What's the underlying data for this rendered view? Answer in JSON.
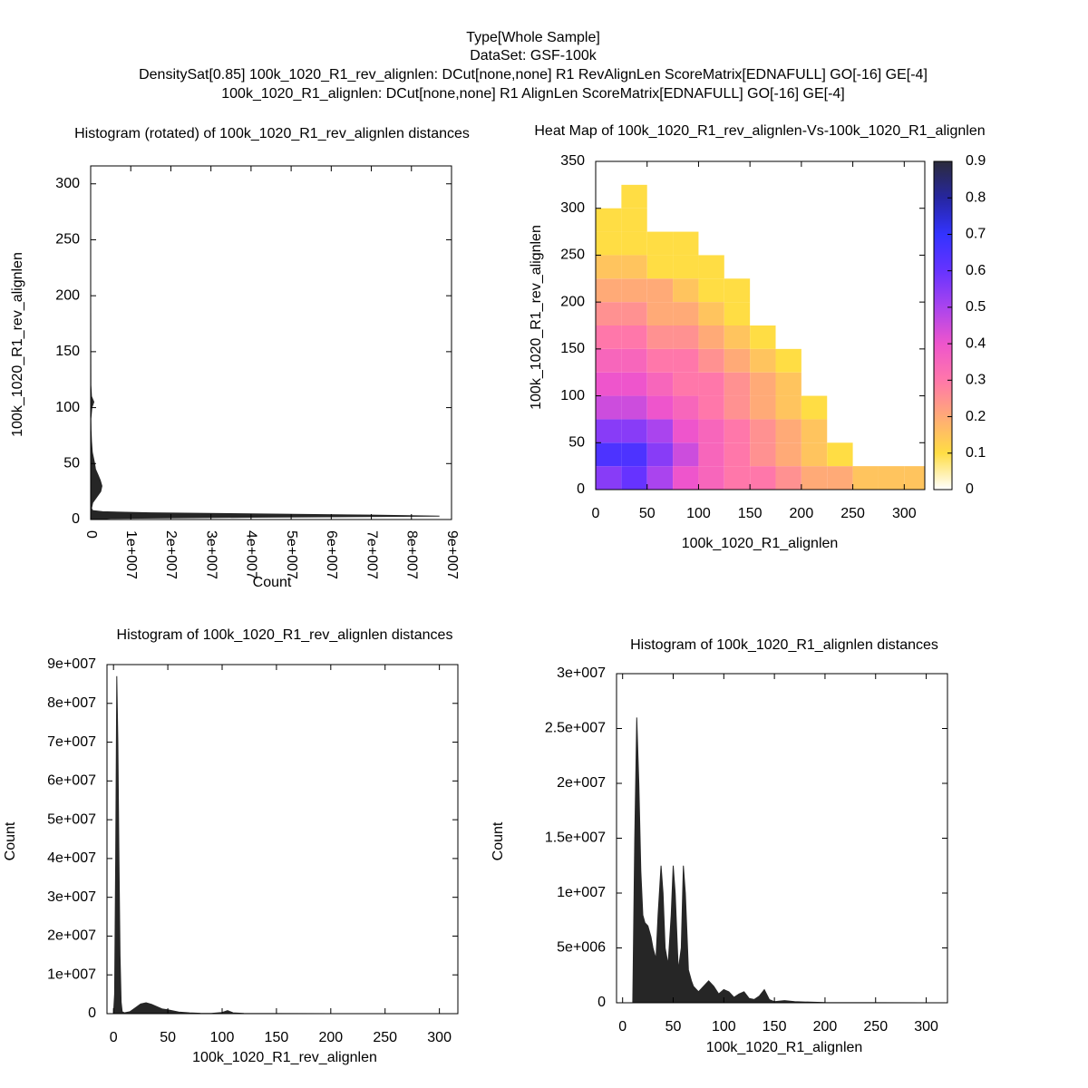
{
  "figure_title": [
    "Type[Whole Sample]",
    "DataSet: GSF-100k",
    "DensitySat[0.85] 100k_1020_R1_rev_alignlen: DCut[none,none] R1 RevAlignLen ScoreMatrix[EDNAFULL] GO[-16] GE[-4]",
    "100k_1020_R1_alignlen: DCut[none,none] R1 AlignLen ScoreMatrix[EDNAFULL] GO[-16] GE[-4]"
  ],
  "chart_data": [
    {
      "type": "area",
      "orientation": "horizontal",
      "title": "Histogram (rotated) of 100k_1020_R1_rev_alignlen distances",
      "xlabel": "Count",
      "ylabel": "100k_1020_R1_rev_alignlen",
      "color": "#262626",
      "x": [
        0,
        1,
        2,
        3,
        4,
        5,
        6,
        7,
        8,
        10,
        15,
        20,
        25,
        30,
        35,
        40,
        45,
        50,
        55,
        60,
        70,
        80,
        90,
        100,
        105,
        110,
        120,
        150,
        200,
        300
      ],
      "values": [
        0,
        5000000,
        40000000,
        87000000,
        70000000,
        40000000,
        15000000,
        3000000,
        500000,
        200000,
        500000,
        1500000,
        2500000,
        2800000,
        2400000,
        1800000,
        1200000,
        1000000,
        700000,
        400000,
        200000,
        100000,
        50000,
        300000,
        800000,
        200000,
        50000,
        20000,
        10000,
        0
      ],
      "xlim": [
        0,
        90000000
      ],
      "xticks": [
        0,
        {
          "value": 10000000,
          "label": "1e+007"
        },
        {
          "value": 20000000,
          "label": "2e+007"
        },
        {
          "value": 30000000,
          "label": "3e+007"
        },
        {
          "value": 40000000,
          "label": "4e+007"
        },
        {
          "value": 50000000,
          "label": "5e+007"
        },
        {
          "value": 60000000,
          "label": "6e+007"
        },
        {
          "value": 70000000,
          "label": "7e+007"
        },
        {
          "value": 80000000,
          "label": "8e+007"
        },
        {
          "value": 90000000,
          "label": "9e+007"
        }
      ],
      "ylim": [
        0,
        316
      ],
      "yticks": [
        0,
        50,
        100,
        150,
        200,
        250,
        300
      ]
    },
    {
      "type": "heatmap",
      "title": "Heat Map of 100k_1020_R1_rev_alignlen-Vs-100k_1020_R1_alignlen",
      "xlabel": "100k_1020_R1_alignlen",
      "ylabel": "100k_1020_R1_rev_alignlen",
      "x": [
        12.5,
        37.5,
        62.5,
        87.5,
        112.5,
        137.5,
        162.5,
        187.5,
        212.5,
        237.5,
        262.5,
        287.5,
        312.5
      ],
      "y": [
        12.5,
        37.5,
        62.5,
        87.5,
        112.5,
        137.5,
        162.5,
        187.5,
        212.5,
        237.5,
        262.5,
        287.5,
        312.5
      ],
      "z": [
        [
          0.55,
          0.6,
          0.5,
          0.4,
          0.35,
          0.3,
          0.3,
          0.25,
          0.2,
          0.2,
          0.15,
          0.15,
          0.15
        ],
        [
          0.65,
          0.65,
          0.55,
          0.45,
          0.35,
          0.3,
          0.25,
          0.2,
          0.15,
          0.1,
          null,
          null,
          null
        ],
        [
          0.55,
          0.55,
          0.5,
          0.4,
          0.35,
          0.3,
          0.25,
          0.2,
          0.15,
          null,
          null,
          null,
          null
        ],
        [
          0.45,
          0.45,
          0.4,
          0.35,
          0.3,
          0.25,
          0.2,
          0.15,
          0.1,
          null,
          null,
          null,
          null
        ],
        [
          0.4,
          0.4,
          0.35,
          0.3,
          0.3,
          0.25,
          0.2,
          0.15,
          null,
          null,
          null,
          null,
          null
        ],
        [
          0.35,
          0.35,
          0.3,
          0.3,
          0.25,
          0.2,
          0.15,
          0.1,
          null,
          null,
          null,
          null,
          null
        ],
        [
          0.3,
          0.3,
          0.25,
          0.25,
          0.2,
          0.15,
          0.1,
          null,
          null,
          null,
          null,
          null,
          null
        ],
        [
          0.25,
          0.25,
          0.2,
          0.2,
          0.15,
          0.1,
          null,
          null,
          null,
          null,
          null,
          null,
          null
        ],
        [
          0.2,
          0.2,
          0.2,
          0.15,
          0.1,
          0.1,
          null,
          null,
          null,
          null,
          null,
          null,
          null
        ],
        [
          0.15,
          0.15,
          0.1,
          0.1,
          0.1,
          null,
          null,
          null,
          null,
          null,
          null,
          null,
          null
        ],
        [
          0.1,
          0.1,
          0.1,
          0.1,
          null,
          null,
          null,
          null,
          null,
          null,
          null,
          null,
          null
        ],
        [
          0.1,
          0.1,
          null,
          null,
          null,
          null,
          null,
          null,
          null,
          null,
          null,
          null,
          null
        ],
        [
          null,
          0.1,
          null,
          null,
          null,
          null,
          null,
          null,
          null,
          null,
          null,
          null,
          null
        ]
      ],
      "xlim": [
        0,
        320
      ],
      "xticks": [
        0,
        50,
        100,
        150,
        200,
        250,
        300
      ],
      "ylim": [
        0,
        350
      ],
      "yticks": [
        0,
        50,
        100,
        150,
        200,
        250,
        300,
        350
      ],
      "cblim": [
        0,
        0.9
      ],
      "cbticks": [
        0,
        0.1,
        0.2,
        0.3,
        0.4,
        0.5,
        0.6,
        0.7,
        0.8,
        0.9
      ],
      "palette": [
        "#ffffff",
        "#ffdd44",
        "#ffaa77",
        "#ff77aa",
        "#ee55cc",
        "#aa44ee",
        "#6633ff",
        "#3333ff",
        "#2626a0",
        "#2b2b3b"
      ]
    },
    {
      "type": "area",
      "orientation": "vertical",
      "title": "Histogram of 100k_1020_R1_rev_alignlen distances",
      "xlabel": "100k_1020_R1_rev_alignlen",
      "ylabel": "Count",
      "color": "#262626",
      "x": [
        0,
        1,
        2,
        3,
        4,
        5,
        6,
        7,
        8,
        10,
        15,
        20,
        25,
        30,
        35,
        40,
        45,
        50,
        55,
        60,
        70,
        80,
        90,
        100,
        105,
        110,
        120,
        150,
        200,
        300
      ],
      "values": [
        0,
        5000000,
        40000000,
        87000000,
        70000000,
        40000000,
        15000000,
        3000000,
        500000,
        200000,
        500000,
        1500000,
        2500000,
        2800000,
        2400000,
        1800000,
        1200000,
        1000000,
        700000,
        400000,
        200000,
        100000,
        50000,
        300000,
        800000,
        200000,
        50000,
        20000,
        10000,
        0
      ],
      "xlim": [
        -6,
        317
      ],
      "xticks": [
        0,
        50,
        100,
        150,
        200,
        250,
        300
      ],
      "ylim": [
        0,
        90000000
      ],
      "yticks": [
        0,
        {
          "value": 10000000,
          "label": "1e+007"
        },
        {
          "value": 20000000,
          "label": "2e+007"
        },
        {
          "value": 30000000,
          "label": "3e+007"
        },
        {
          "value": 40000000,
          "label": "4e+007"
        },
        {
          "value": 50000000,
          "label": "5e+007"
        },
        {
          "value": 60000000,
          "label": "6e+007"
        },
        {
          "value": 70000000,
          "label": "7e+007"
        },
        {
          "value": 80000000,
          "label": "8e+007"
        },
        {
          "value": 90000000,
          "label": "9e+007"
        }
      ]
    },
    {
      "type": "area",
      "orientation": "vertical",
      "title": "Histogram of 100k_1020_R1_alignlen distances",
      "xlabel": "100k_1020_R1_alignlen",
      "ylabel": "Count",
      "color": "#262626",
      "x": [
        10,
        12,
        14,
        16,
        18,
        20,
        22,
        25,
        28,
        30,
        33,
        35,
        38,
        40,
        42,
        45,
        48,
        50,
        52,
        55,
        58,
        60,
        62,
        65,
        68,
        70,
        75,
        80,
        85,
        90,
        95,
        100,
        105,
        110,
        115,
        120,
        125,
        130,
        135,
        140,
        145,
        150,
        160,
        170,
        200,
        300
      ],
      "values": [
        0,
        15000000,
        26000000,
        20000000,
        12000000,
        8000000,
        7300000,
        7000000,
        6000000,
        5000000,
        4000000,
        8000000,
        12500000,
        10000000,
        5000000,
        3500000,
        8000000,
        12500000,
        10000000,
        3000000,
        5000000,
        12500000,
        10000000,
        3000000,
        2000000,
        1500000,
        1000000,
        1500000,
        2000000,
        1500000,
        800000,
        1200000,
        1000000,
        500000,
        800000,
        1000000,
        400000,
        300000,
        600000,
        1200000,
        300000,
        100000,
        200000,
        100000,
        20000,
        0
      ],
      "xlim": [
        -6,
        321
      ],
      "xticks": [
        0,
        50,
        100,
        150,
        200,
        250,
        300
      ],
      "ylim": [
        0,
        30000000
      ],
      "yticks": [
        0,
        {
          "value": 5000000,
          "label": "5e+006"
        },
        {
          "value": 10000000,
          "label": "1e+007"
        },
        {
          "value": 15000000,
          "label": "1.5e+007"
        },
        {
          "value": 20000000,
          "label": "2e+007"
        },
        {
          "value": 25000000,
          "label": "2.5e+007"
        },
        {
          "value": 30000000,
          "label": "3e+007"
        }
      ]
    }
  ]
}
